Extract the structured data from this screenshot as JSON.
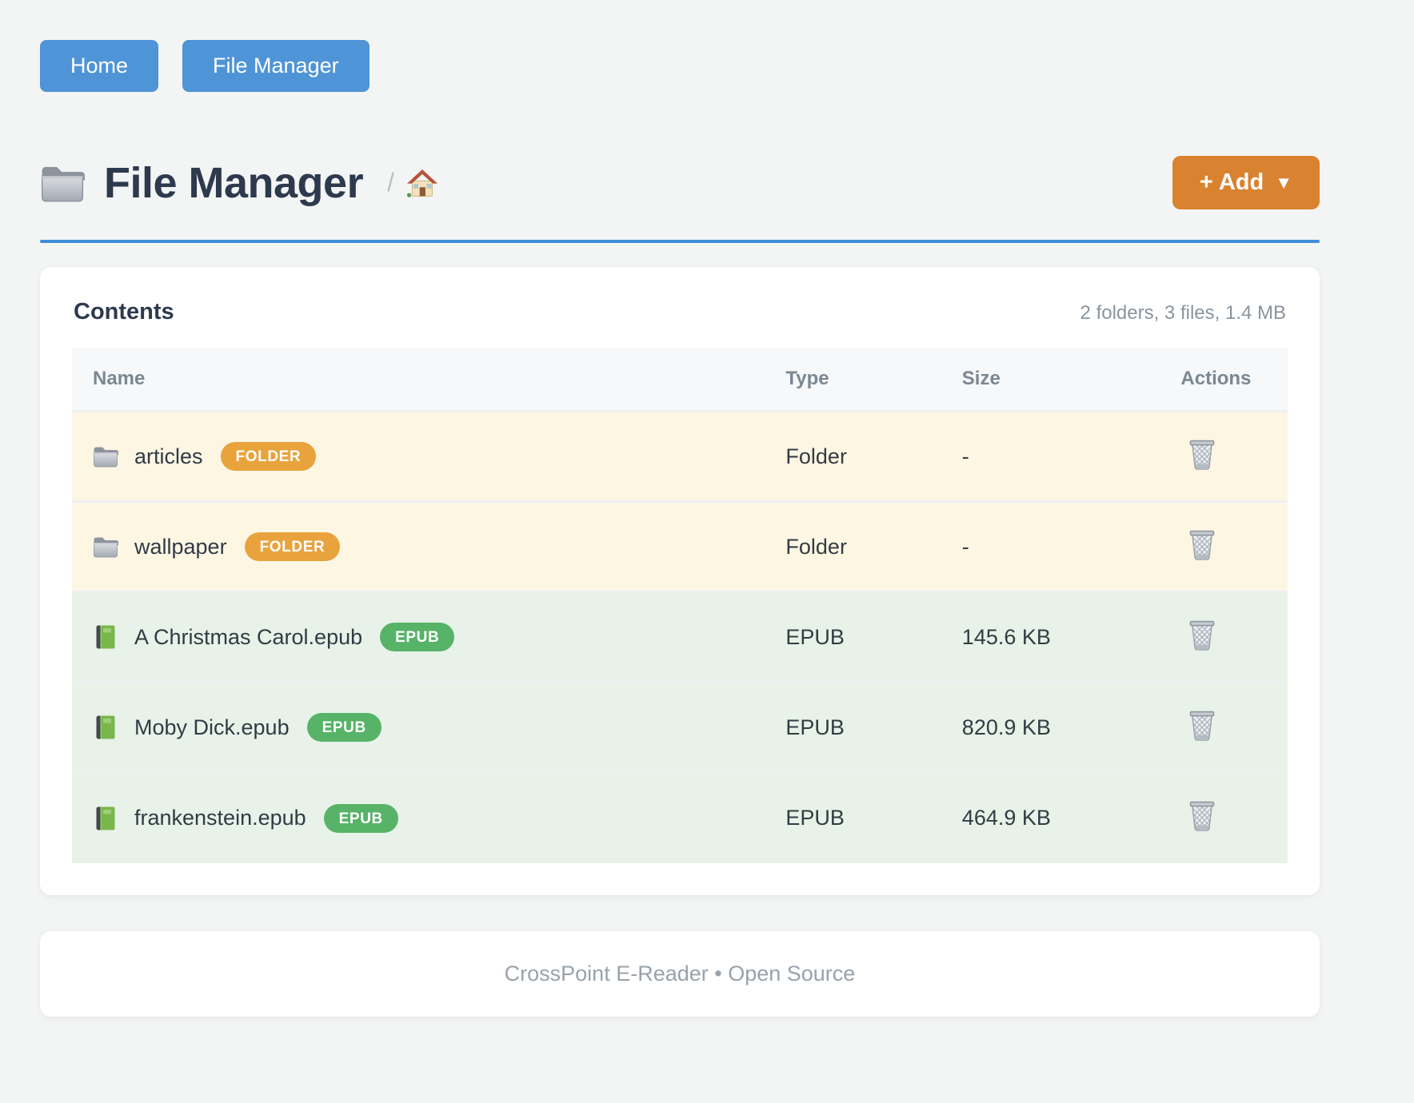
{
  "nav": {
    "buttons": [
      {
        "label": "Home"
      },
      {
        "label": "File Manager"
      }
    ]
  },
  "header": {
    "title": "File Manager",
    "title_icon": "folder-icon",
    "breadcrumb_separator": "/",
    "breadcrumb_home_icon": "house-icon",
    "add_button": {
      "label": "+ Add",
      "caret": "▼"
    }
  },
  "contents_card": {
    "title": "Contents",
    "summary": "2 folders, 3 files, 1.4 MB",
    "table": {
      "columns": [
        "Name",
        "Type",
        "Size",
        "Actions"
      ],
      "row_action_icon": "trash-icon",
      "rows": [
        {
          "name": "articles",
          "badge": "FOLDER",
          "kind": "folder",
          "icon": "folder-icon",
          "type": "Folder",
          "size": "-"
        },
        {
          "name": "wallpaper",
          "badge": "FOLDER",
          "kind": "folder",
          "icon": "folder-icon",
          "type": "Folder",
          "size": "-"
        },
        {
          "name": "A Christmas Carol.epub",
          "badge": "EPUB",
          "kind": "epub",
          "icon": "book-icon",
          "type": "EPUB",
          "size": "145.6 KB"
        },
        {
          "name": "Moby Dick.epub",
          "badge": "EPUB",
          "kind": "epub",
          "icon": "book-icon",
          "type": "EPUB",
          "size": "820.9 KB"
        },
        {
          "name": "frankenstein.epub",
          "badge": "EPUB",
          "kind": "epub",
          "icon": "book-icon",
          "type": "EPUB",
          "size": "464.9 KB"
        }
      ]
    }
  },
  "footer": {
    "text": "CrossPoint E-Reader • Open Source"
  },
  "colors": {
    "accent_blue": "#4f94d6",
    "accent_orange": "#d9822f",
    "hr_blue": "#3f8ed6",
    "badge_folder": "#e9a33c",
    "badge_epub": "#57b368",
    "row_folder_bg": "#fdf6e3",
    "row_epub_bg": "#e8f2e8"
  }
}
